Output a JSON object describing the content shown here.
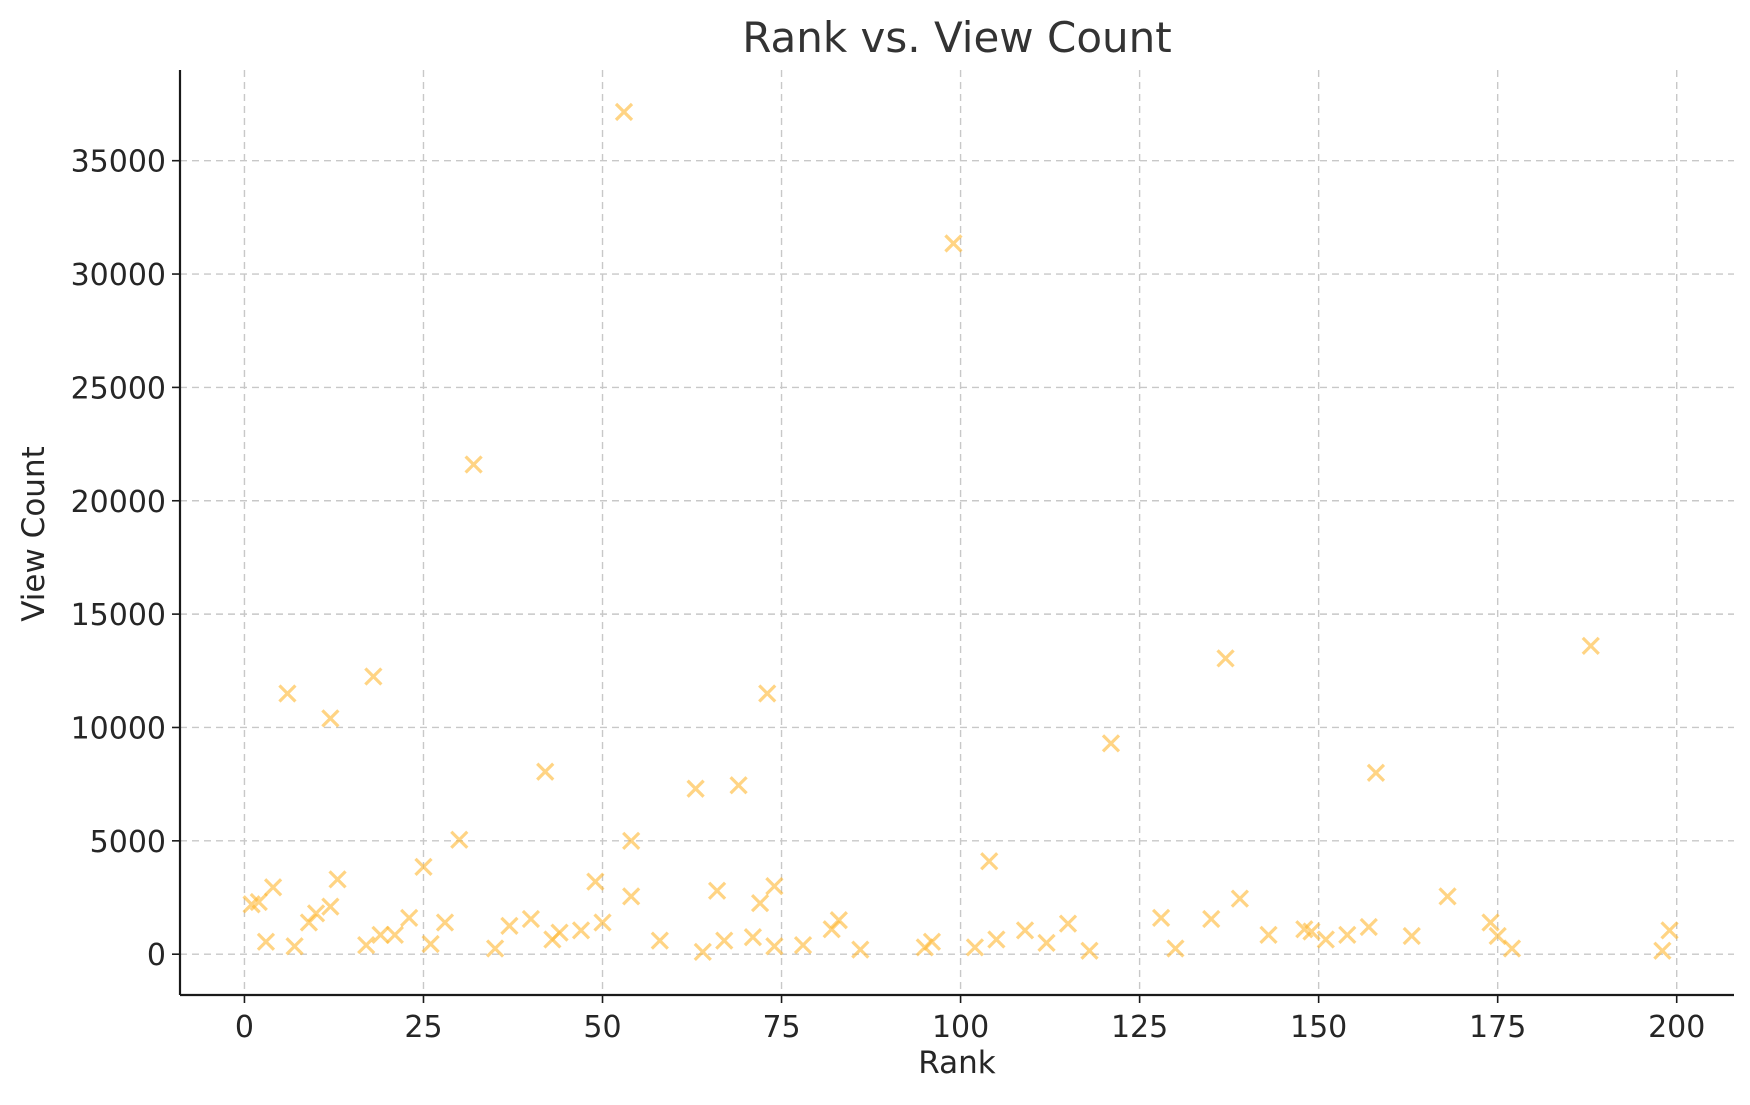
{
  "chart_data": {
    "type": "scatter",
    "title": "Rank vs. View Count",
    "xlabel": "Rank",
    "ylabel": "View Count",
    "xlim": [
      -9,
      208
    ],
    "ylim": [
      -1800,
      39000
    ],
    "xticks": [
      0,
      25,
      50,
      75,
      100,
      125,
      150,
      175,
      200
    ],
    "yticks": [
      0,
      5000,
      10000,
      15000,
      20000,
      25000,
      30000,
      35000
    ],
    "xtick_labels": [
      "0",
      "25",
      "50",
      "75",
      "100",
      "125",
      "150",
      "175",
      "200"
    ],
    "ytick_labels": [
      "0",
      "5000",
      "10000",
      "15000",
      "20000",
      "25000",
      "30000",
      "35000"
    ],
    "grid": true,
    "marker": "x",
    "color": "#FFB833",
    "points": [
      [
        1,
        2200
      ],
      [
        2,
        2300
      ],
      [
        3,
        550
      ],
      [
        4,
        2950
      ],
      [
        6,
        11500
      ],
      [
        7,
        350
      ],
      [
        9,
        1400
      ],
      [
        10,
        1800
      ],
      [
        12,
        10400
      ],
      [
        12,
        2100
      ],
      [
        13,
        3300
      ],
      [
        17,
        400
      ],
      [
        18,
        12250
      ],
      [
        19,
        850
      ],
      [
        21,
        850
      ],
      [
        23,
        1600
      ],
      [
        25,
        3850
      ],
      [
        26,
        450
      ],
      [
        28,
        1400
      ],
      [
        30,
        5050
      ],
      [
        32,
        21600
      ],
      [
        35,
        250
      ],
      [
        37,
        1250
      ],
      [
        40,
        1550
      ],
      [
        42,
        8050
      ],
      [
        43,
        650
      ],
      [
        44,
        950
      ],
      [
        47,
        1050
      ],
      [
        49,
        3200
      ],
      [
        50,
        1400
      ],
      [
        53,
        37150
      ],
      [
        54,
        5000
      ],
      [
        54,
        2550
      ],
      [
        58,
        600
      ],
      [
        63,
        7300
      ],
      [
        64,
        100
      ],
      [
        66,
        2800
      ],
      [
        67,
        600
      ],
      [
        69,
        7450
      ],
      [
        71,
        750
      ],
      [
        72,
        2250
      ],
      [
        73,
        11500
      ],
      [
        74,
        3000
      ],
      [
        74,
        350
      ],
      [
        78,
        400
      ],
      [
        82,
        1100
      ],
      [
        83,
        1500
      ],
      [
        86,
        200
      ],
      [
        95,
        300
      ],
      [
        96,
        550
      ],
      [
        99,
        31350
      ],
      [
        102,
        300
      ],
      [
        104,
        4100
      ],
      [
        105,
        650
      ],
      [
        109,
        1050
      ],
      [
        112,
        500
      ],
      [
        115,
        1350
      ],
      [
        118,
        150
      ],
      [
        121,
        9300
      ],
      [
        128,
        1600
      ],
      [
        130,
        250
      ],
      [
        135,
        1550
      ],
      [
        137,
        13050
      ],
      [
        139,
        2450
      ],
      [
        143,
        850
      ],
      [
        148,
        1100
      ],
      [
        149,
        1000
      ],
      [
        151,
        650
      ],
      [
        154,
        850
      ],
      [
        157,
        1200
      ],
      [
        158,
        8000
      ],
      [
        163,
        800
      ],
      [
        168,
        2550
      ],
      [
        174,
        1400
      ],
      [
        175,
        800
      ],
      [
        177,
        250
      ],
      [
        188,
        13600
      ],
      [
        198,
        150
      ],
      [
        199,
        1050
      ]
    ]
  }
}
